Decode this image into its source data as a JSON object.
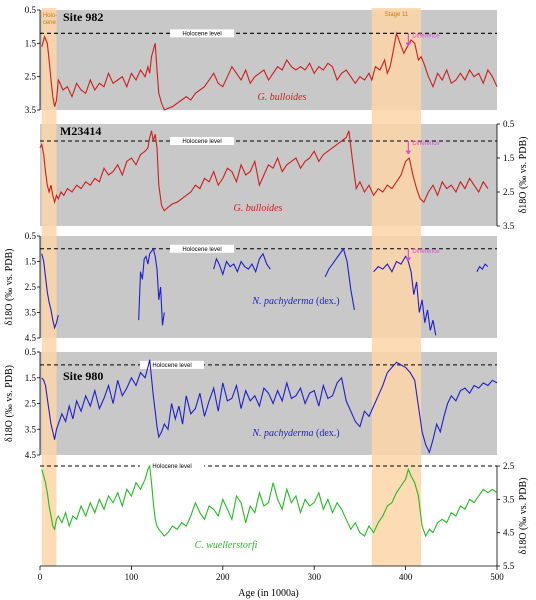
{
  "chart_data": {
    "type": "line",
    "xlabel": "Age (in 1000a)",
    "xlim": [
      0,
      500
    ],
    "xticks": [
      "0",
      "100",
      "200",
      "300",
      "400",
      "500"
    ],
    "shaded_intervals": [
      {
        "label": "Holo-\ncene",
        "from": 2,
        "to": 18,
        "color": "#fbd5a8"
      },
      {
        "label": "Stage 11",
        "from": 363,
        "to": 417,
        "color": "#fbd5a8"
      }
    ],
    "holocene_label": "Holocene level",
    "difference_label": "Difference",
    "ylabel": "δ18O (‰ vs. PDB)",
    "panels": [
      {
        "site": "Site 982",
        "species": "G. bulloides",
        "species_suffix": "",
        "color": "#cc1f1f",
        "axis_side": "left",
        "ylim": [
          0.5,
          3.5
        ],
        "yticks": [
          "0.5",
          "1.5",
          "2.5",
          "3.5"
        ],
        "holocene": 1.2,
        "difference": {
          "x": 403,
          "y_top": 1.2,
          "y_bottom": 1.6
        },
        "x": [
          2,
          5,
          8,
          10,
          12,
          14,
          16,
          18,
          20,
          22,
          25,
          30,
          35,
          40,
          45,
          50,
          55,
          60,
          65,
          70,
          75,
          80,
          85,
          90,
          95,
          100,
          105,
          110,
          115,
          118,
          120,
          122,
          124,
          126,
          128,
          130,
          133,
          136,
          140,
          145,
          150,
          155,
          160,
          165,
          170,
          175,
          180,
          185,
          190,
          195,
          200,
          205,
          210,
          215,
          220,
          225,
          230,
          235,
          240,
          245,
          250,
          255,
          260,
          265,
          270,
          275,
          280,
          285,
          290,
          295,
          300,
          305,
          310,
          315,
          320,
          325,
          330,
          335,
          340,
          345,
          350,
          355,
          360,
          363,
          367,
          372,
          377,
          380,
          383,
          386,
          390,
          394,
          398,
          402,
          406,
          410,
          414,
          417,
          420,
          425,
          430,
          435,
          440,
          445,
          450,
          455,
          460,
          465,
          470,
          475,
          480,
          485,
          490,
          495,
          500
        ],
        "y": [
          1.6,
          1.3,
          1.5,
          2.0,
          2.6,
          3.1,
          3.4,
          3.2,
          2.6,
          2.7,
          2.9,
          2.8,
          3.1,
          2.7,
          2.9,
          3.0,
          2.6,
          2.9,
          2.7,
          2.8,
          2.4,
          2.7,
          2.6,
          2.5,
          2.8,
          2.4,
          2.6,
          2.3,
          2.5,
          2.2,
          2.4,
          1.9,
          1.7,
          1.5,
          2.3,
          3.0,
          3.3,
          3.5,
          3.45,
          3.4,
          3.3,
          3.2,
          3.1,
          3.2,
          3.0,
          2.9,
          2.8,
          2.6,
          2.4,
          2.7,
          2.8,
          2.5,
          2.2,
          2.4,
          2.6,
          2.3,
          2.7,
          2.5,
          2.4,
          2.3,
          2.6,
          2.4,
          2.2,
          2.3,
          2.0,
          2.2,
          2.3,
          2.2,
          2.3,
          2.1,
          2.4,
          2.2,
          2.3,
          2.1,
          2.2,
          2.6,
          2.4,
          2.3,
          2.5,
          2.7,
          2.5,
          2.6,
          2.4,
          2.6,
          2.2,
          2.3,
          2.0,
          2.4,
          2.2,
          1.8,
          1.2,
          1.5,
          1.8,
          1.6,
          1.4,
          1.5,
          2.0,
          1.9,
          2.1,
          2.5,
          2.8,
          2.4,
          2.6,
          2.3,
          2.7,
          2.6,
          2.4,
          2.6,
          2.3,
          2.5,
          2.4,
          2.7,
          2.3,
          2.5,
          2.8
        ]
      },
      {
        "site": "M23414",
        "species": "G. bulloides",
        "species_suffix": "",
        "color": "#cc1f1f",
        "axis_side": "right",
        "ylim": [
          0.5,
          3.5
        ],
        "yticks": [
          "0.5",
          "1.5",
          "2.5",
          "3.5"
        ],
        "holocene": 1.0,
        "difference": {
          "x": 403,
          "y_top": 1.0,
          "y_bottom": 1.4
        },
        "x": [
          0,
          2,
          4,
          6,
          8,
          10,
          12,
          14,
          16,
          18,
          20,
          23,
          26,
          30,
          35,
          40,
          45,
          50,
          55,
          60,
          65,
          70,
          75,
          80,
          85,
          90,
          95,
          100,
          105,
          110,
          115,
          118,
          120,
          122,
          124,
          126,
          128,
          130,
          133,
          136,
          140,
          145,
          150,
          155,
          160,
          165,
          170,
          175,
          180,
          185,
          190,
          195,
          200,
          205,
          210,
          215,
          220,
          225,
          230,
          235,
          240,
          245,
          250,
          255,
          260,
          265,
          270,
          275,
          280,
          285,
          290,
          295,
          300,
          305,
          310,
          315,
          320,
          325,
          330,
          335,
          338,
          342,
          346,
          350,
          355,
          360,
          365,
          370,
          375,
          380,
          385,
          390,
          395,
          400,
          404,
          408,
          412,
          416,
          420,
          425,
          430,
          435,
          440,
          445,
          450,
          455,
          460,
          465,
          470,
          475,
          480,
          485,
          490
        ],
        "y": [
          1.2,
          1.1,
          1.4,
          1.9,
          2.3,
          2.5,
          2.3,
          2.6,
          2.8,
          2.6,
          2.7,
          2.5,
          2.6,
          2.4,
          2.5,
          2.3,
          2.4,
          2.2,
          2.3,
          2.1,
          2.2,
          1.8,
          2.0,
          1.9,
          1.7,
          2.0,
          1.6,
          1.5,
          1.7,
          1.4,
          1.3,
          1.2,
          0.9,
          0.7,
          1.0,
          0.8,
          1.2,
          2.3,
          2.9,
          3.05,
          2.95,
          2.85,
          2.8,
          2.7,
          2.6,
          2.5,
          2.3,
          2.4,
          2.1,
          2.2,
          1.9,
          2.3,
          2.1,
          1.8,
          1.9,
          2.2,
          1.7,
          2.0,
          1.9,
          1.6,
          2.3,
          2.0,
          1.7,
          1.8,
          1.5,
          1.9,
          1.7,
          1.6,
          1.5,
          1.8,
          1.6,
          1.5,
          1.3,
          1.6,
          1.4,
          1.3,
          1.2,
          1.1,
          1.0,
          0.9,
          0.7,
          1.6,
          2.4,
          2.2,
          2.5,
          2.3,
          2.6,
          2.4,
          2.5,
          2.3,
          2.4,
          2.2,
          2.0,
          1.6,
          1.5,
          2.0,
          2.4,
          2.7,
          2.8,
          2.5,
          2.3,
          2.6,
          2.2,
          2.4,
          2.3,
          2.5,
          2.2,
          2.4,
          2.1,
          2.3,
          2.5,
          2.2,
          2.4
        ]
      },
      {
        "site": "",
        "species": "N. pachyderma",
        "species_suffix": "(dex.)",
        "color": "#1f1fcc",
        "axis_side": "left",
        "ylim": [
          0.5,
          4.5
        ],
        "yticks": [
          "0.5",
          "1.5",
          "2.5",
          "3.5",
          "4.5"
        ],
        "holocene": 1.0,
        "difference": {
          "x": 403,
          "y_top": 1.0,
          "y_bottom": 1.5
        },
        "segments": [
          {
            "x": [
              2,
              4,
              6,
              8,
              10,
              12,
              14,
              16,
              18,
              20
            ],
            "y": [
              1.2,
              1.5,
              2.1,
              2.7,
              3.1,
              3.4,
              3.8,
              4.1,
              3.9,
              3.6
            ]
          },
          {
            "x": [
              108,
              110,
              112,
              114,
              116,
              118,
              120,
              122,
              124,
              126,
              128,
              130,
              132,
              134,
              136
            ],
            "y": [
              3.8,
              1.9,
              2.2,
              1.4,
              1.3,
              1.6,
              1.2,
              1.1,
              1.0,
              1.3,
              1.8,
              3.0,
              2.5,
              4.0,
              3.5
            ]
          },
          {
            "x": [
              190,
              193,
              196,
              200,
              204,
              208,
              212,
              216,
              220,
              224,
              228,
              232,
              236,
              240,
              244,
              248,
              252
            ],
            "y": [
              1.8,
              1.4,
              1.6,
              2.0,
              1.5,
              1.7,
              1.6,
              1.9,
              1.5,
              1.7,
              1.8,
              1.6,
              1.9,
              1.4,
              1.2,
              1.6,
              1.8
            ]
          },
          {
            "x": [
              312,
              316,
              320,
              324,
              328,
              332,
              336,
              340,
              344
            ],
            "y": [
              2.1,
              1.8,
              1.6,
              1.4,
              1.2,
              1.0,
              1.5,
              2.6,
              3.4
            ]
          },
          {
            "x": [
              365,
              370,
              375,
              380,
              385,
              390,
              395,
              400,
              403,
              406,
              409,
              412,
              415,
              418,
              421,
              424,
              427,
              430,
              433
            ],
            "y": [
              1.9,
              1.7,
              1.8,
              1.6,
              1.9,
              1.5,
              1.6,
              1.3,
              1.5,
              1.9,
              2.8,
              2.3,
              3.5,
              3.0,
              3.9,
              3.4,
              4.2,
              3.8,
              4.4
            ]
          },
          {
            "x": [
              478,
              481,
              484,
              487,
              490
            ],
            "y": [
              1.9,
              1.7,
              1.8,
              1.6,
              1.7
            ]
          }
        ]
      },
      {
        "site": "Site 980",
        "species": "N. pachyderma",
        "species_suffix": "(dex.)",
        "color": "#1f1fcc",
        "axis_side": "left",
        "ylim": [
          0.5,
          4.5
        ],
        "yticks": [
          "0.5",
          "1.5",
          "2.5",
          "3.5",
          "4.5"
        ],
        "holocene": 1.0,
        "x": [
          2,
          4,
          6,
          8,
          10,
          12,
          14,
          16,
          18,
          20,
          24,
          28,
          32,
          36,
          40,
          45,
          50,
          55,
          60,
          65,
          70,
          75,
          80,
          85,
          90,
          95,
          100,
          105,
          110,
          115,
          118,
          120,
          122,
          124,
          126,
          128,
          130,
          133,
          136,
          140,
          144,
          148,
          152,
          156,
          160,
          165,
          170,
          175,
          180,
          185,
          190,
          195,
          200,
          205,
          210,
          215,
          220,
          225,
          230,
          235,
          240,
          245,
          250,
          255,
          260,
          265,
          270,
          275,
          280,
          285,
          290,
          295,
          300,
          305,
          310,
          315,
          320,
          325,
          330,
          335,
          340,
          345,
          350,
          355,
          360,
          365,
          370,
          375,
          380,
          385,
          390,
          395,
          400,
          405,
          410,
          414,
          418,
          422,
          426,
          430,
          434,
          438,
          442,
          446,
          450,
          455,
          460,
          465,
          470,
          475,
          480,
          485,
          490,
          495,
          500
        ],
        "y": [
          1.5,
          1.6,
          1.8,
          2.3,
          2.8,
          3.3,
          3.6,
          3.9,
          3.5,
          3.3,
          2.9,
          3.2,
          2.6,
          3.1,
          2.4,
          2.8,
          2.2,
          2.6,
          2.0,
          2.7,
          2.3,
          1.8,
          2.5,
          1.6,
          2.2,
          1.9,
          1.5,
          1.8,
          1.3,
          1.5,
          1.1,
          0.8,
          1.5,
          2.2,
          2.8,
          3.4,
          3.8,
          3.6,
          3.3,
          3.5,
          2.5,
          3.1,
          2.6,
          3.3,
          2.2,
          2.9,
          2.7,
          2.1,
          3.0,
          2.4,
          1.9,
          2.8,
          1.7,
          2.4,
          2.3,
          1.8,
          2.7,
          2.0,
          2.4,
          2.2,
          2.6,
          1.9,
          2.1,
          2.5,
          2.0,
          2.4,
          1.7,
          2.3,
          2.2,
          1.9,
          2.5,
          2.1,
          2.0,
          2.6,
          1.8,
          2.3,
          2.2,
          1.7,
          1.5,
          2.4,
          2.8,
          3.2,
          3.4,
          2.8,
          3.0,
          2.6,
          2.2,
          1.8,
          1.3,
          1.1,
          0.9,
          1.0,
          1.1,
          1.3,
          1.6,
          2.6,
          3.6,
          4.1,
          4.4,
          3.9,
          3.3,
          3.6,
          3.0,
          2.5,
          2.2,
          2.4,
          2.0,
          1.9,
          2.1,
          1.8,
          1.9,
          1.7,
          1.8,
          1.6,
          1.7
        ]
      },
      {
        "site": "",
        "species": "C. wuellerstorfi",
        "species_suffix": "",
        "color": "#22bb22",
        "axis_side": "right",
        "ylim": [
          2.5,
          5.5
        ],
        "yticks": [
          "2.5",
          "3.5",
          "4.5",
          "5.5"
        ],
        "holocene": 2.5,
        "x": [
          2,
          4,
          6,
          8,
          10,
          12,
          14,
          16,
          18,
          20,
          24,
          28,
          32,
          36,
          40,
          45,
          50,
          55,
          60,
          65,
          70,
          75,
          80,
          85,
          90,
          95,
          100,
          105,
          110,
          115,
          118,
          120,
          122,
          124,
          126,
          128,
          130,
          133,
          136,
          140,
          145,
          150,
          155,
          160,
          165,
          170,
          175,
          180,
          185,
          190,
          195,
          200,
          205,
          210,
          215,
          220,
          225,
          230,
          235,
          240,
          245,
          250,
          255,
          260,
          265,
          270,
          275,
          280,
          285,
          290,
          295,
          300,
          305,
          310,
          315,
          320,
          325,
          330,
          335,
          340,
          345,
          350,
          355,
          360,
          365,
          370,
          375,
          380,
          385,
          390,
          395,
          400,
          403,
          406,
          410,
          414,
          418,
          422,
          426,
          430,
          435,
          440,
          445,
          450,
          455,
          460,
          465,
          470,
          475,
          480,
          485,
          490,
          495,
          500
        ],
        "y": [
          2.6,
          2.8,
          3.0,
          3.3,
          3.7,
          4.0,
          4.3,
          4.4,
          4.1,
          4.0,
          4.2,
          3.9,
          4.3,
          4.0,
          4.1,
          3.7,
          4.0,
          3.6,
          3.9,
          3.5,
          3.8,
          3.4,
          3.6,
          3.3,
          3.7,
          3.2,
          3.4,
          3.0,
          3.2,
          2.9,
          2.6,
          2.5,
          3.0,
          3.6,
          4.1,
          4.3,
          4.4,
          4.5,
          4.6,
          4.5,
          4.3,
          4.4,
          4.2,
          4.3,
          4.0,
          3.6,
          3.9,
          4.1,
          3.7,
          3.8,
          4.0,
          3.5,
          3.8,
          4.1,
          3.4,
          3.6,
          4.2,
          3.7,
          3.9,
          3.3,
          3.7,
          3.6,
          3.0,
          3.5,
          3.8,
          3.2,
          3.6,
          3.4,
          3.9,
          3.5,
          3.7,
          3.6,
          3.3,
          3.8,
          3.5,
          3.9,
          3.6,
          3.8,
          4.1,
          4.4,
          4.2,
          4.5,
          4.6,
          4.3,
          4.5,
          4.2,
          4.0,
          3.7,
          3.6,
          3.3,
          3.1,
          2.9,
          2.6,
          2.8,
          3.0,
          3.4,
          4.3,
          4.6,
          4.4,
          4.5,
          4.2,
          4.1,
          4.2,
          3.9,
          4.0,
          3.7,
          3.8,
          3.5,
          3.6,
          3.4,
          3.2,
          3.3,
          3.2,
          3.3
        ]
      }
    ]
  }
}
